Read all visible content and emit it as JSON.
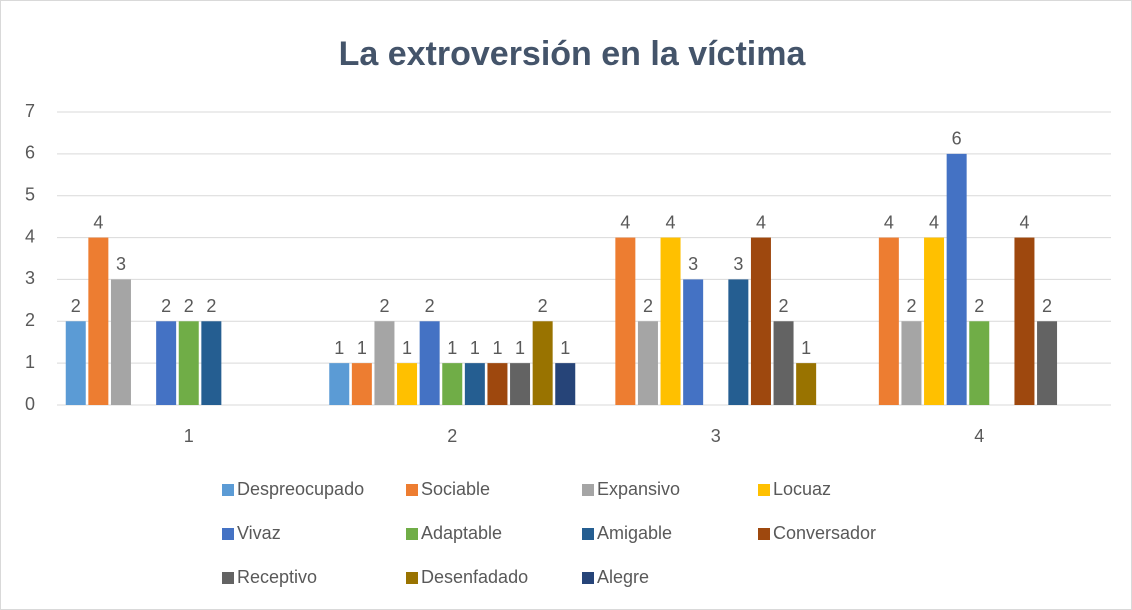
{
  "chart_data": {
    "type": "bar",
    "title": "La extroversión en la víctima",
    "categories": [
      "1",
      "2",
      "3",
      "4"
    ],
    "series": [
      {
        "name": "Despreocupado",
        "color": "#5b9bd5",
        "values": [
          2,
          1,
          null,
          null
        ]
      },
      {
        "name": "Sociable",
        "color": "#ed7d31",
        "values": [
          4,
          1,
          4,
          4
        ]
      },
      {
        "name": "Expansivo",
        "color": "#a5a5a5",
        "values": [
          3,
          2,
          2,
          2
        ]
      },
      {
        "name": "Locuaz",
        "color": "#ffc000",
        "values": [
          null,
          1,
          4,
          4
        ]
      },
      {
        "name": "Vivaz",
        "color": "#4472c4",
        "values": [
          2,
          2,
          3,
          6
        ]
      },
      {
        "name": "Adaptable",
        "color": "#70ad47",
        "values": [
          2,
          1,
          null,
          2
        ]
      },
      {
        "name": "Amigable",
        "color": "#255e91",
        "values": [
          2,
          1,
          3,
          null
        ]
      },
      {
        "name": "Conversador",
        "color": "#9e480e",
        "values": [
          null,
          1,
          4,
          4
        ]
      },
      {
        "name": "Receptivo",
        "color": "#636363",
        "values": [
          null,
          1,
          2,
          2
        ]
      },
      {
        "name": "Desenfadado",
        "color": "#997300",
        "values": [
          null,
          2,
          1,
          null
        ]
      },
      {
        "name": "Alegre",
        "color": "#264478",
        "values": [
          null,
          1,
          null,
          null
        ]
      }
    ],
    "ylim": [
      0,
      7
    ],
    "yticks": [
      0,
      1,
      2,
      3,
      4,
      5,
      6,
      7
    ],
    "grid": true,
    "legend": "bottom"
  }
}
